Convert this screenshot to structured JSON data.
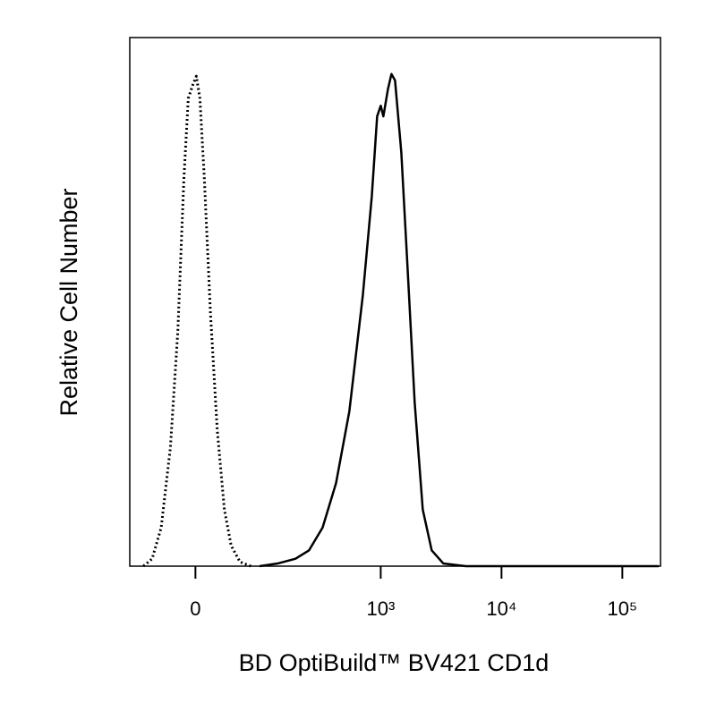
{
  "chart_data": {
    "type": "line",
    "xlabel": "BD OptiBuild™ BV421 CD1d",
    "ylabel": "Relative Cell Number",
    "x_scale": "biexponential",
    "xlim": [
      -94,
      207000
    ],
    "xticks": [
      0,
      {
        "value": 1000,
        "label": "10³"
      },
      {
        "value": 10000,
        "label": "10⁴"
      },
      {
        "value": 100000,
        "label": "10⁵"
      }
    ],
    "ylim": [
      0,
      100
    ],
    "series": [
      {
        "color": "#000000",
        "style": "dotted",
        "x": [
          -68,
          -54,
          -41,
          -29,
          -20,
          -13,
          -8,
          -3,
          1,
          5,
          10,
          17,
          25,
          34,
          43,
          56,
          74
        ],
        "values": [
          0,
          1.4,
          7.3,
          22.5,
          44.5,
          73.3,
          88.5,
          91,
          92.7,
          88.5,
          73.3,
          47.9,
          25.9,
          10.7,
          3.9,
          0.8,
          0
        ]
      },
      {
        "color": "#000000",
        "style": "solid",
        "x": [
          91,
          134,
          193,
          252,
          328,
          425,
          549,
          711,
          843,
          934,
          1000,
          1052,
          1147,
          1227,
          1314,
          1481,
          1670,
          1911,
          2230,
          2643,
          3303,
          5060,
          200000
        ],
        "values": [
          0,
          0.5,
          1.4,
          3.0,
          7.3,
          15.7,
          29.3,
          51.3,
          69.9,
          85.1,
          87.1,
          85.1,
          90.2,
          93.1,
          91.9,
          78.3,
          56.3,
          31.0,
          10.7,
          3.0,
          0.5,
          0,
          0
        ]
      }
    ]
  }
}
